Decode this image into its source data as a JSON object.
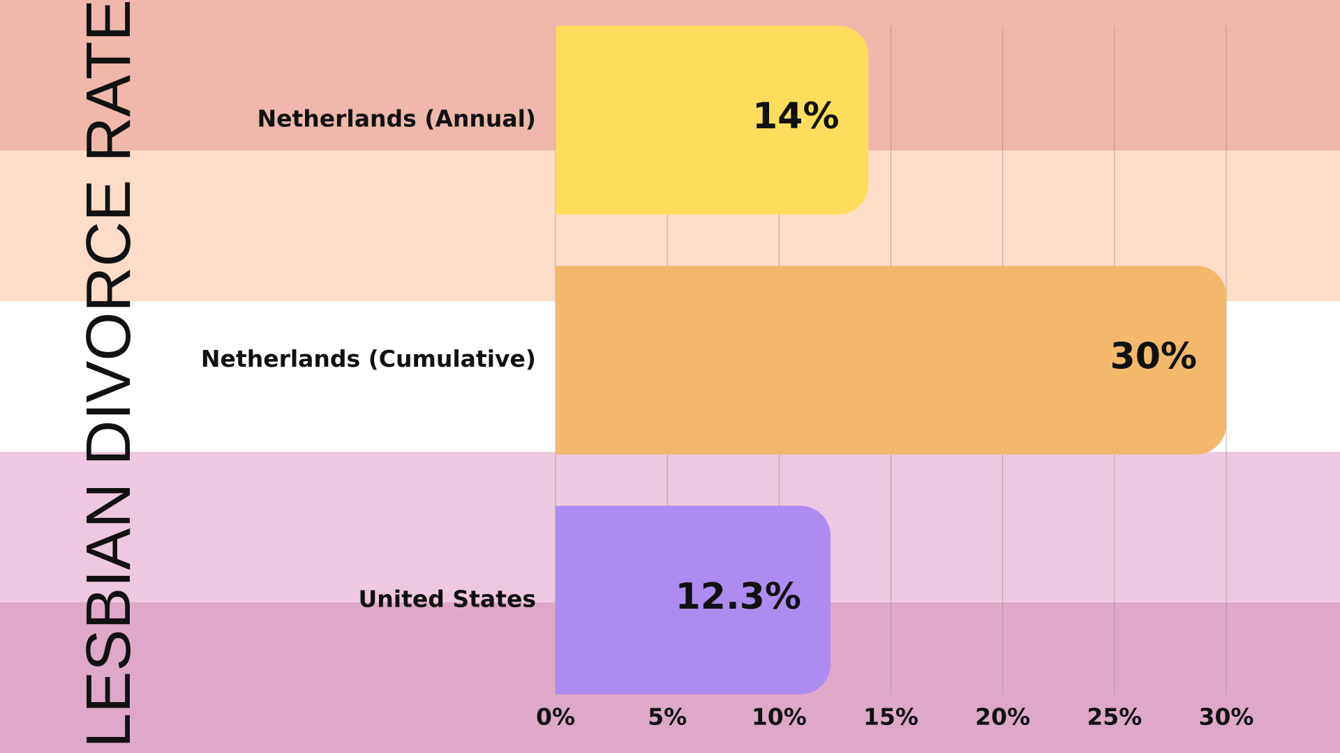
{
  "chart_data": {
    "type": "bar",
    "orientation": "horizontal",
    "title": "LESBIAN DIVORCE RATE",
    "categories": [
      "Netherlands (Annual)",
      "Netherlands (Cumulative)",
      "United States"
    ],
    "values": [
      14,
      30,
      12.3
    ],
    "value_labels": [
      "14%",
      "30%",
      "12.3%"
    ],
    "colors": [
      "#ffdd5c",
      "#f2b86b",
      "#ad8cf2"
    ],
    "xlim": [
      0,
      30
    ],
    "xticks": [
      {
        "value": 0,
        "label": "0%"
      },
      {
        "value": 5,
        "label": "5%"
      },
      {
        "value": 10,
        "label": "10%"
      },
      {
        "value": 15,
        "label": "15%"
      },
      {
        "value": 20,
        "label": "20%"
      },
      {
        "value": 25,
        "label": "25%"
      },
      {
        "value": 30,
        "label": "30%"
      }
    ],
    "grid": true
  }
}
